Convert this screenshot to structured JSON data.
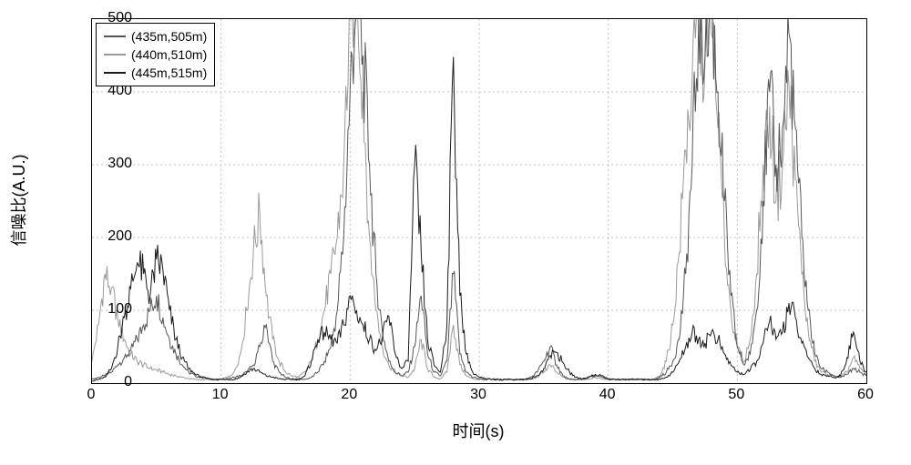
{
  "chart": {
    "type": "line",
    "background_color": "#ffffff",
    "grid_color": "#c0c0c0",
    "axis_color": "#000000",
    "xlabel": "时间(s)",
    "ylabel": "信噪比(A.U.)",
    "label_fontsize": 18,
    "tick_fontsize": 16,
    "xlim": [
      0,
      60
    ],
    "ylim": [
      0,
      500
    ],
    "xtick_step": 10,
    "ytick_step": 100,
    "xticks": [
      0,
      10,
      20,
      30,
      40,
      50,
      60
    ],
    "yticks": [
      0,
      100,
      200,
      300,
      400,
      500
    ],
    "legend": {
      "position": "upper-left",
      "items": [
        {
          "label": "(435m,505m)",
          "color": "#555555"
        },
        {
          "label": "(440m,510m)",
          "color": "#9a9a9a"
        },
        {
          "label": "(445m,515m)",
          "color": "#1a1a1a"
        }
      ]
    },
    "series": [
      {
        "name": "(435m,505m)",
        "color": "#555555",
        "line_width": 1,
        "x": [
          0,
          0.5,
          1,
          1.5,
          2,
          2.5,
          3,
          3.5,
          4,
          4.5,
          5,
          5.5,
          6,
          6.5,
          7,
          7.5,
          8,
          8.5,
          9,
          9.5,
          10,
          10.5,
          11,
          11.5,
          12,
          12.5,
          13,
          13.5,
          14,
          14.5,
          15,
          15.5,
          16,
          16.5,
          17,
          17.5,
          18,
          18.5,
          19,
          19.5,
          20,
          20.5,
          21,
          21.5,
          22,
          22.5,
          23,
          23.5,
          24,
          24.5,
          25,
          25.5,
          26,
          26.5,
          27,
          27.5,
          28,
          28.5,
          29,
          29.5,
          30,
          30.5,
          31,
          31.5,
          32,
          32.5,
          33,
          33.5,
          34,
          34.5,
          35,
          35.5,
          36,
          36.5,
          37,
          37.5,
          38,
          38.5,
          39,
          39.5,
          40,
          40.5,
          41,
          41.5,
          42,
          42.5,
          43,
          43.5,
          44,
          44.5,
          45,
          45.5,
          46,
          46.5,
          47,
          47.5,
          48,
          48.5,
          49,
          49.5,
          50,
          50.5,
          51,
          51.5,
          52,
          52.5,
          53,
          53.5,
          54,
          54.5,
          55,
          55.5,
          56,
          56.5,
          57,
          57.5,
          58,
          58.5,
          59,
          59.5,
          60
        ],
        "y": [
          5,
          8,
          10,
          15,
          25,
          35,
          45,
          60,
          80,
          100,
          120,
          90,
          60,
          40,
          25,
          15,
          10,
          8,
          6,
          5,
          5,
          6,
          8,
          10,
          15,
          25,
          50,
          80,
          30,
          15,
          8,
          6,
          5,
          5,
          8,
          15,
          30,
          50,
          100,
          200,
          400,
          550,
          450,
          300,
          150,
          70,
          30,
          15,
          10,
          15,
          50,
          120,
          40,
          15,
          10,
          30,
          150,
          40,
          15,
          8,
          6,
          5,
          5,
          5,
          5,
          5,
          5,
          5,
          8,
          15,
          30,
          50,
          25,
          10,
          5,
          5,
          5,
          8,
          10,
          8,
          5,
          5,
          5,
          5,
          5,
          5,
          5,
          5,
          8,
          15,
          30,
          60,
          150,
          300,
          500,
          450,
          520,
          400,
          250,
          120,
          50,
          25,
          40,
          100,
          250,
          400,
          300,
          350,
          480,
          350,
          200,
          100,
          40,
          20,
          15,
          10,
          8,
          12,
          20,
          15,
          10
        ]
      },
      {
        "name": "(440m,510m)",
        "color": "#9a9a9a",
        "line_width": 1,
        "x": [
          0,
          0.5,
          1,
          1.5,
          2,
          2.5,
          3,
          3.5,
          4,
          4.5,
          5,
          5.5,
          6,
          6.5,
          7,
          7.5,
          8,
          8.5,
          9,
          9.5,
          10,
          10.5,
          11,
          11.5,
          12,
          12.5,
          13,
          13.5,
          14,
          14.5,
          15,
          15.5,
          16,
          16.5,
          17,
          17.5,
          18,
          18.5,
          19,
          19.5,
          20,
          20.5,
          21,
          21.5,
          22,
          22.5,
          23,
          23.5,
          24,
          24.5,
          25,
          25.5,
          26,
          26.5,
          27,
          27.5,
          28,
          28.5,
          29,
          29.5,
          30,
          30.5,
          31,
          31.5,
          32,
          32.5,
          33,
          33.5,
          34,
          34.5,
          35,
          35.5,
          36,
          36.5,
          37,
          37.5,
          38,
          38.5,
          39,
          39.5,
          40,
          40.5,
          41,
          41.5,
          42,
          42.5,
          43,
          43.5,
          44,
          44.5,
          45,
          45.5,
          46,
          46.5,
          47,
          47.5,
          48,
          48.5,
          49,
          49.5,
          50,
          50.5,
          51,
          51.5,
          52,
          52.5,
          53,
          53.5,
          54,
          54.5,
          55,
          55.5,
          56,
          56.5,
          57,
          57.5,
          58,
          58.5,
          59,
          59.5,
          60
        ],
        "y": [
          30,
          80,
          150,
          130,
          90,
          60,
          40,
          30,
          25,
          20,
          18,
          15,
          12,
          10,
          8,
          6,
          5,
          5,
          5,
          5,
          5,
          8,
          15,
          40,
          100,
          180,
          233,
          120,
          60,
          30,
          15,
          10,
          8,
          15,
          30,
          60,
          100,
          150,
          200,
          300,
          520,
          560,
          400,
          200,
          100,
          50,
          25,
          15,
          10,
          8,
          20,
          60,
          20,
          8,
          6,
          15,
          80,
          25,
          10,
          6,
          5,
          5,
          5,
          5,
          5,
          5,
          5,
          5,
          5,
          8,
          15,
          25,
          15,
          8,
          5,
          5,
          5,
          6,
          8,
          6,
          5,
          5,
          5,
          5,
          5,
          5,
          5,
          5,
          10,
          30,
          80,
          180,
          320,
          420,
          500,
          440,
          480,
          350,
          200,
          100,
          50,
          30,
          60,
          150,
          300,
          380,
          250,
          300,
          410,
          280,
          150,
          70,
          30,
          15,
          12,
          10,
          8,
          15,
          35,
          20,
          12
        ]
      },
      {
        "name": "(445m,515m)",
        "color": "#1a1a1a",
        "line_width": 1,
        "x": [
          0,
          0.5,
          1,
          1.5,
          2,
          2.5,
          3,
          3.5,
          4,
          4.5,
          5,
          5.5,
          6,
          6.5,
          7,
          7.5,
          8,
          8.5,
          9,
          9.5,
          10,
          10.5,
          11,
          11.5,
          12,
          12.5,
          13,
          13.5,
          14,
          14.5,
          15,
          15.5,
          16,
          16.5,
          17,
          17.5,
          18,
          18.5,
          19,
          19.5,
          20,
          20.5,
          21,
          21.5,
          22,
          22.5,
          23,
          23.5,
          24,
          24.5,
          25,
          25.5,
          26,
          26.5,
          27,
          27.5,
          28,
          28.5,
          29,
          29.5,
          30,
          30.5,
          31,
          31.5,
          32,
          32.5,
          33,
          33.5,
          34,
          34.5,
          35,
          35.5,
          36,
          36.5,
          37,
          37.5,
          38,
          38.5,
          39,
          39.5,
          40,
          40.5,
          41,
          41.5,
          42,
          42.5,
          43,
          43.5,
          44,
          44.5,
          45,
          45.5,
          46,
          46.5,
          47,
          47.5,
          48,
          48.5,
          49,
          49.5,
          50,
          50.5,
          51,
          51.5,
          52,
          52.5,
          53,
          53.5,
          54,
          54.5,
          55,
          55.5,
          56,
          56.5,
          57,
          57.5,
          58,
          58.5,
          59,
          59.5,
          60
        ],
        "y": [
          3,
          5,
          8,
          20,
          50,
          90,
          130,
          165,
          150,
          120,
          170,
          155,
          100,
          60,
          35,
          20,
          12,
          8,
          6,
          5,
          5,
          5,
          5,
          8,
          15,
          20,
          15,
          10,
          8,
          6,
          5,
          5,
          5,
          10,
          30,
          60,
          70,
          60,
          55,
          80,
          120,
          100,
          80,
          60,
          45,
          62,
          92,
          40,
          20,
          30,
          300,
          180,
          60,
          25,
          15,
          80,
          448,
          120,
          40,
          15,
          8,
          6,
          5,
          5,
          5,
          5,
          5,
          5,
          6,
          10,
          20,
          38,
          42,
          28,
          15,
          8,
          6,
          8,
          12,
          10,
          6,
          5,
          5,
          5,
          5,
          5,
          5,
          5,
          5,
          8,
          15,
          30,
          50,
          70,
          60,
          55,
          70,
          60,
          40,
          25,
          15,
          12,
          18,
          30,
          55,
          85,
          60,
          70,
          110,
          90,
          55,
          35,
          20,
          12,
          10,
          8,
          10,
          35,
          70,
          30,
          15
        ]
      }
    ]
  }
}
